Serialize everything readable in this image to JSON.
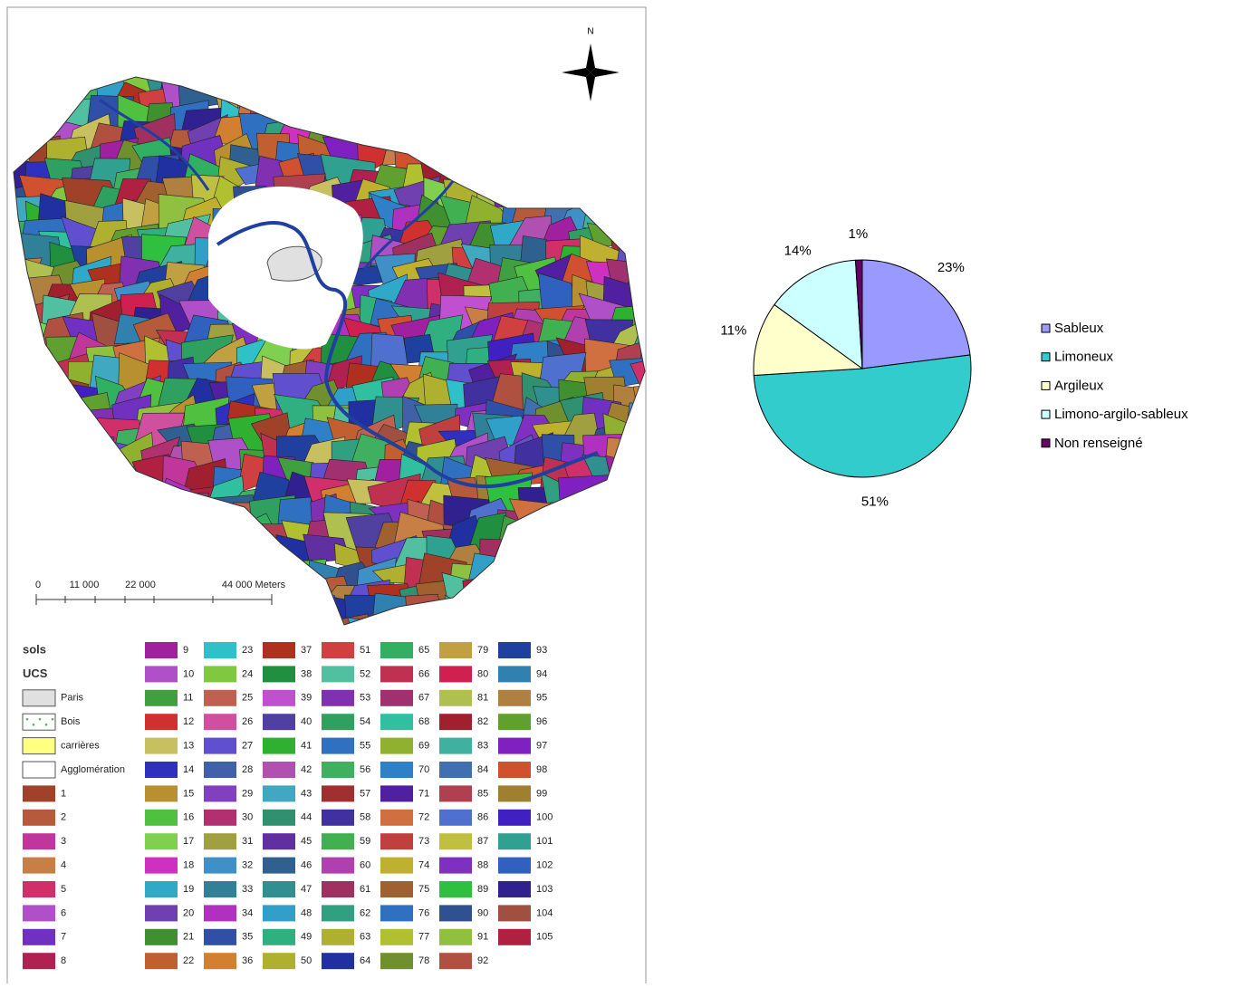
{
  "map": {
    "north": "N",
    "scale_labels": [
      "0",
      "11 000",
      "22 000",
      "44 000 Meters"
    ],
    "legend": {
      "title": "sols",
      "subtitle": "UCS",
      "specials": [
        {
          "label": "Paris",
          "color": "#e0e0e0"
        },
        {
          "label": "Bois",
          "color": "#ffffff"
        },
        {
          "label": "carrières",
          "color": "#ffff80"
        },
        {
          "label": "Agglomération",
          "color": "#ffffff"
        }
      ],
      "ucs": {
        "labels": [
          1,
          2,
          3,
          4,
          5,
          6,
          7,
          8,
          9,
          10,
          11,
          12,
          13,
          14,
          15,
          16,
          17,
          18,
          19,
          20,
          21,
          22,
          23,
          24,
          25,
          26,
          27,
          28,
          29,
          30,
          31,
          32,
          33,
          34,
          35,
          36,
          37,
          38,
          39,
          40,
          41,
          42,
          43,
          44,
          45,
          46,
          47,
          48,
          49,
          50,
          51,
          52,
          53,
          54,
          55,
          56,
          57,
          58,
          59,
          60,
          61,
          62,
          63,
          64,
          65,
          66,
          67,
          68,
          69,
          70,
          71,
          72,
          73,
          74,
          75,
          76,
          77,
          78,
          79,
          80,
          81,
          82,
          83,
          84,
          85,
          86,
          87,
          88,
          89,
          90,
          91,
          92,
          93,
          94,
          95,
          96,
          97,
          98,
          99,
          100,
          101,
          102,
          103,
          104,
          105
        ],
        "colors": [
          "#a0412a",
          "#b55a3a",
          "#c0369a",
          "#c87f45",
          "#d02f6a",
          "#b050c8",
          "#7030c0",
          "#b02050",
          "#a020a0",
          "#b050c8",
          "#40a040",
          "#d03030",
          "#c8c060",
          "#3030c0",
          "#b89030",
          "#50c040",
          "#80d050",
          "#d030c0",
          "#30a8c8",
          "#7040b0",
          "#409030",
          "#c06030",
          "#30c0c8",
          "#80c840",
          "#c06050",
          "#d050a0",
          "#6050d0",
          "#4060a8",
          "#8040c0",
          "#b03070",
          "#a0a040",
          "#4090c8",
          "#308098",
          "#b030c0",
          "#3050a8",
          "#d08030",
          "#b03020",
          "#209040",
          "#c050d0",
          "#5040a0",
          "#30b030",
          "#b050b0",
          "#40a8c0",
          "#309070",
          "#6030a0",
          "#306090",
          "#309090",
          "#30a0c8",
          "#30b080",
          "#b0b030",
          "#d04040",
          "#50c0a0",
          "#8030b0",
          "#30a060",
          "#3070c0",
          "#40b060",
          "#a03030",
          "#4030a0",
          "#40b050",
          "#b040b0",
          "#a03060",
          "#30a080",
          "#b0b030",
          "#2030a0",
          "#30b060",
          "#c03050",
          "#a03070",
          "#30c0a0",
          "#90b030",
          "#3080c8",
          "#5020a0",
          "#d07040",
          "#c04040",
          "#c0b030",
          "#a06030",
          "#3070c0",
          "#b0c030",
          "#709030",
          "#c0a040",
          "#d02050",
          "#b0c050",
          "#a02030",
          "#40b0a0",
          "#4070b0",
          "#b04050",
          "#5070d0",
          "#c0c040",
          "#8030c0",
          "#30c040",
          "#305090",
          "#90c040",
          "#b05040",
          "#2040a0",
          "#3080b0",
          "#b08040",
          "#60a030",
          "#8020c0",
          "#d05030",
          "#a08030",
          "#4020c0",
          "#30a090",
          "#3060c0",
          "#302090",
          "#a05040",
          "#b02040"
        ]
      }
    }
  },
  "chart_data": {
    "type": "pie",
    "categories": [
      "Sableux",
      "Limoneux",
      "Argileux",
      "Limono-argilo-sableux",
      "Non renseigné"
    ],
    "values": [
      23,
      51,
      11,
      14,
      1
    ],
    "value_labels": [
      "23%",
      "51%",
      "11%",
      "14%",
      "1%"
    ],
    "colors": [
      "#9999ff",
      "#33cccc",
      "#ffffcc",
      "#ccffff",
      "#660066"
    ],
    "legend": "right"
  }
}
